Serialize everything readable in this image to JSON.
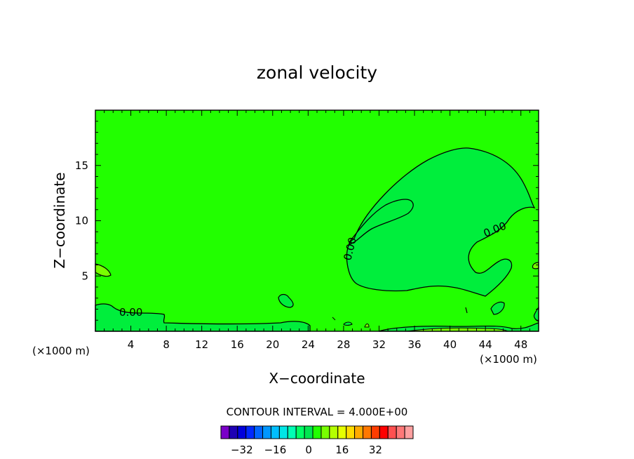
{
  "chart_data": {
    "type": "heatmap",
    "title": "zonal velocity",
    "xlabel": "X−coordinate",
    "ylabel": "Z−coordinate",
    "x_unit_left": "(×1000 m)",
    "x_unit_right": "(×1000 m)",
    "xlim": [
      0,
      50
    ],
    "ylim": [
      0,
      20
    ],
    "x_ticks": [
      4,
      8,
      12,
      16,
      20,
      24,
      28,
      32,
      36,
      40,
      44,
      48
    ],
    "y_ticks": [
      5,
      10,
      15
    ],
    "contour_interval_text": "CONTOUR INTERVAL = 4.000E+00",
    "contour_label": "0.00",
    "background_color": "#22ff00",
    "colorbar": {
      "colors": [
        "#7a00c8",
        "#1e00b4",
        "#0000dc",
        "#0028ff",
        "#0064ff",
        "#0096ff",
        "#00beff",
        "#00e6e6",
        "#00ffb4",
        "#00ff64",
        "#00e650",
        "#22ff00",
        "#78ff00",
        "#b4ff00",
        "#e6ff00",
        "#ffdc00",
        "#ffaa00",
        "#ff7800",
        "#ff3c00",
        "#ff0000",
        "#ff5050",
        "#ff7878",
        "#ffa0a0"
      ],
      "ticks": [
        -32,
        -16,
        0,
        16,
        32
      ],
      "tick_labels": [
        "−32",
        "−16",
        "0",
        "16",
        "32"
      ]
    }
  }
}
